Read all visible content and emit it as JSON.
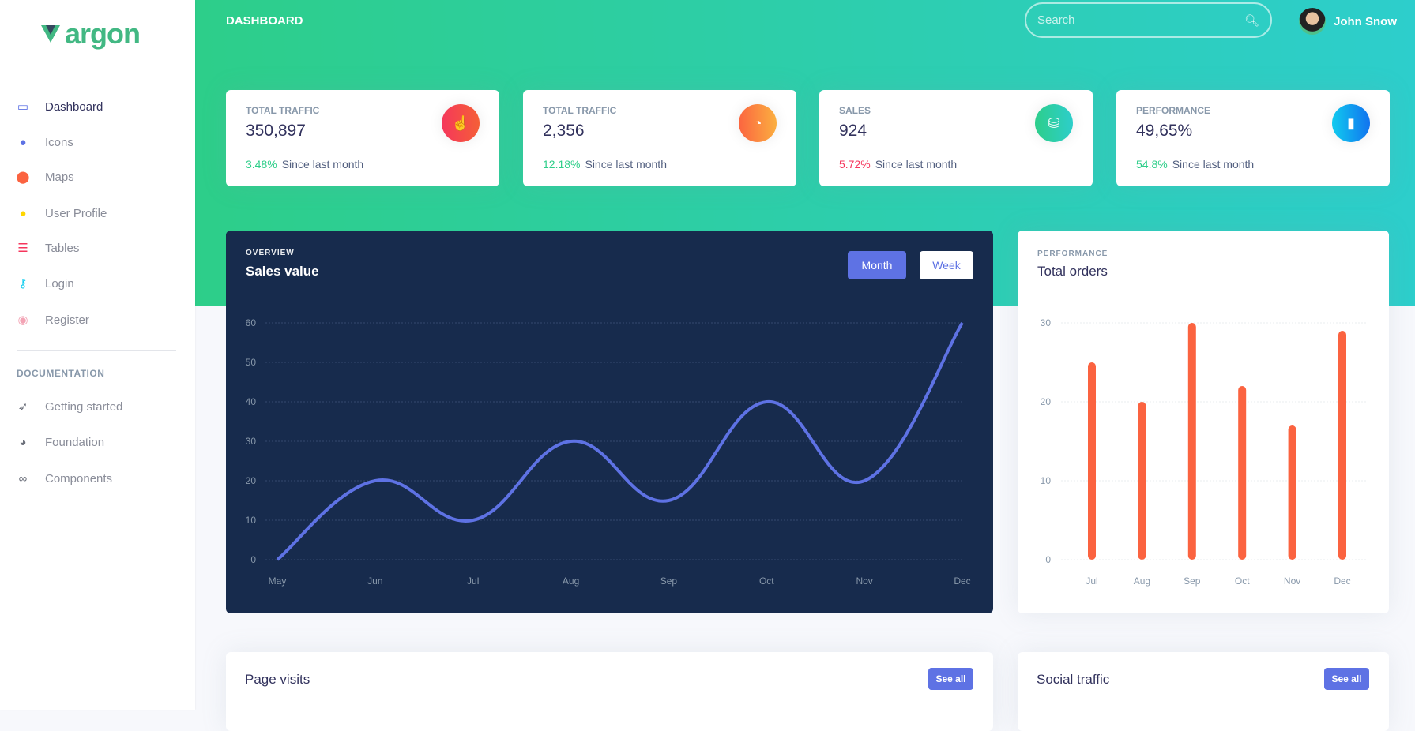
{
  "brand": "argon",
  "sidebar": {
    "items": [
      {
        "label": "Dashboard",
        "icon": "tv-icon",
        "color": "#5e72e4"
      },
      {
        "label": "Icons",
        "icon": "planet-icon",
        "color": "#5e72e4"
      },
      {
        "label": "Maps",
        "icon": "pin-icon",
        "color": "#fb6340"
      },
      {
        "label": "User Profile",
        "icon": "user-icon",
        "color": "#ffd600"
      },
      {
        "label": "Tables",
        "icon": "list-icon",
        "color": "#f5365c"
      },
      {
        "label": "Login",
        "icon": "key-icon",
        "color": "#11cdef"
      },
      {
        "label": "Register",
        "icon": "user-circle-icon",
        "color": "#f3a4b5"
      }
    ],
    "doc_heading": "DOCUMENTATION",
    "doc_items": [
      {
        "label": "Getting started",
        "icon": "rocket-icon"
      },
      {
        "label": "Foundation",
        "icon": "palette-icon"
      },
      {
        "label": "Components",
        "icon": "components-icon"
      }
    ]
  },
  "header": {
    "breadcrumb": "DASHBOARD",
    "search_placeholder": "Search",
    "user_name": "John Snow"
  },
  "stats": [
    {
      "title": "TOTAL TRAFFIC",
      "value": "350,897",
      "change": "3.48%",
      "change_color": "#2dce89",
      "footer": "Since last month",
      "icon": "hand-pointer-icon",
      "gradient": [
        "#f5365c",
        "#f56036"
      ]
    },
    {
      "title": "TOTAL TRAFFIC",
      "value": "2,356",
      "change": "12.18%",
      "change_color": "#2dce89",
      "footer": "Since last month",
      "icon": "pie-chart-icon",
      "gradient": [
        "#fb6340",
        "#fbb140"
      ]
    },
    {
      "title": "SALES",
      "value": "924",
      "change": "5.72%",
      "change_color": "#f5365c",
      "footer": "Since last month",
      "icon": "money-coins-icon",
      "gradient": [
        "#2dce89",
        "#2dcecc"
      ]
    },
    {
      "title": "PERFORMANCE",
      "value": "49,65%",
      "change": "54.8%",
      "change_color": "#2dce89",
      "footer": "Since last month",
      "icon": "bar-chart-icon",
      "gradient": [
        "#11cdef",
        "#1171ef"
      ]
    }
  ],
  "sales_card": {
    "overline": "OVERVIEW",
    "title": "Sales value",
    "month_label": "Month",
    "week_label": "Week"
  },
  "orders_card": {
    "overline": "PERFORMANCE",
    "title": "Total orders"
  },
  "bottom": {
    "page_visits": "Page visits",
    "social_traffic": "Social traffic",
    "see_all": "See all"
  },
  "chart_data": [
    {
      "type": "line",
      "categories": [
        "May",
        "Jun",
        "Jul",
        "Aug",
        "Sep",
        "Oct",
        "Nov",
        "Dec"
      ],
      "values": [
        0,
        20,
        10,
        30,
        15,
        40,
        20,
        60
      ],
      "ylim": [
        0,
        60
      ],
      "yticks": [
        0,
        10,
        20,
        30,
        40,
        50,
        60
      ],
      "grid": true,
      "color": "#5e72e4"
    },
    {
      "type": "bar",
      "categories": [
        "Jul",
        "Aug",
        "Sep",
        "Oct",
        "Nov",
        "Dec"
      ],
      "values": [
        25,
        20,
        30,
        22,
        17,
        29
      ],
      "ylim": [
        0,
        30
      ],
      "yticks": [
        0,
        10,
        20,
        30
      ],
      "grid": true,
      "color": "#fb6340"
    }
  ]
}
